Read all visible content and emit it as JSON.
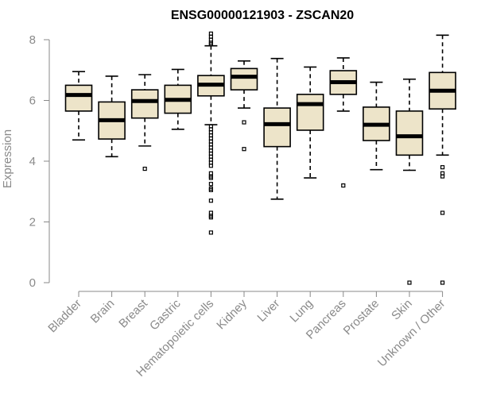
{
  "chart_data": {
    "type": "boxplot",
    "title": "ENSG00000121903 - ZSCAN20",
    "xlabel": "",
    "ylabel": "Expression",
    "ylim": [
      0,
      8.2
    ],
    "yticks": [
      0,
      2,
      4,
      6,
      8
    ],
    "grid": false,
    "categories": [
      "Bladder",
      "Brain",
      "Breast",
      "Gastric",
      "Hematopoietic cells",
      "Kidney",
      "Liver",
      "Lung",
      "Pancreas",
      "Prostate",
      "Skin",
      "Unknown / Other"
    ],
    "boxes": [
      {
        "category": "Bladder",
        "whisker_low": 4.7,
        "q1": 5.65,
        "median": 6.18,
        "q3": 6.5,
        "whisker_high": 6.95,
        "outliers": []
      },
      {
        "category": "Brain",
        "whisker_low": 4.15,
        "q1": 4.73,
        "median": 5.35,
        "q3": 5.95,
        "whisker_high": 6.8,
        "outliers": []
      },
      {
        "category": "Breast",
        "whisker_low": 4.5,
        "q1": 5.42,
        "median": 5.98,
        "q3": 6.35,
        "whisker_high": 6.85,
        "outliers": [
          3.75
        ]
      },
      {
        "category": "Gastric",
        "whisker_low": 5.05,
        "q1": 5.58,
        "median": 6.02,
        "q3": 6.5,
        "whisker_high": 7.02,
        "outliers": []
      },
      {
        "category": "Hematopoietic cells",
        "whisker_low": 5.2,
        "q1": 6.15,
        "median": 6.52,
        "q3": 6.82,
        "whisker_high": 7.8,
        "outliers": [
          8.2,
          8.1,
          8.0,
          7.9,
          7.85,
          5.15,
          5.05,
          4.95,
          4.85,
          4.75,
          4.65,
          4.55,
          4.45,
          4.35,
          4.25,
          4.15,
          4.05,
          3.95,
          3.85,
          3.6,
          3.5,
          3.45,
          3.25,
          3.1,
          3.05,
          2.7,
          2.3,
          2.2,
          2.15,
          1.65
        ]
      },
      {
        "category": "Kidney",
        "whisker_low": 5.75,
        "q1": 6.35,
        "median": 6.78,
        "q3": 7.05,
        "whisker_high": 7.3,
        "outliers": [
          5.28,
          4.4
        ]
      },
      {
        "category": "Liver",
        "whisker_low": 2.75,
        "q1": 4.48,
        "median": 5.22,
        "q3": 5.75,
        "whisker_high": 7.38,
        "outliers": []
      },
      {
        "category": "Lung",
        "whisker_low": 3.45,
        "q1": 5.02,
        "median": 5.88,
        "q3": 6.2,
        "whisker_high": 7.1,
        "outliers": []
      },
      {
        "category": "Pancreas",
        "whisker_low": 5.65,
        "q1": 6.2,
        "median": 6.6,
        "q3": 6.98,
        "whisker_high": 7.4,
        "outliers": [
          3.2
        ]
      },
      {
        "category": "Prostate",
        "whisker_low": 3.72,
        "q1": 4.68,
        "median": 5.2,
        "q3": 5.78,
        "whisker_high": 6.6,
        "outliers": []
      },
      {
        "category": "Skin",
        "whisker_low": 3.7,
        "q1": 4.2,
        "median": 4.82,
        "q3": 5.65,
        "whisker_high": 6.7,
        "outliers": [
          0.0
        ]
      },
      {
        "category": "Unknown / Other",
        "whisker_low": 4.2,
        "q1": 5.72,
        "median": 6.32,
        "q3": 6.92,
        "whisker_high": 8.15,
        "outliers": [
          3.8,
          3.6,
          3.5,
          2.3,
          0.0
        ]
      }
    ]
  },
  "colors": {
    "box_fill": "#ede4c9",
    "axis": "#888888",
    "text_muted": "#8a8a8a"
  }
}
